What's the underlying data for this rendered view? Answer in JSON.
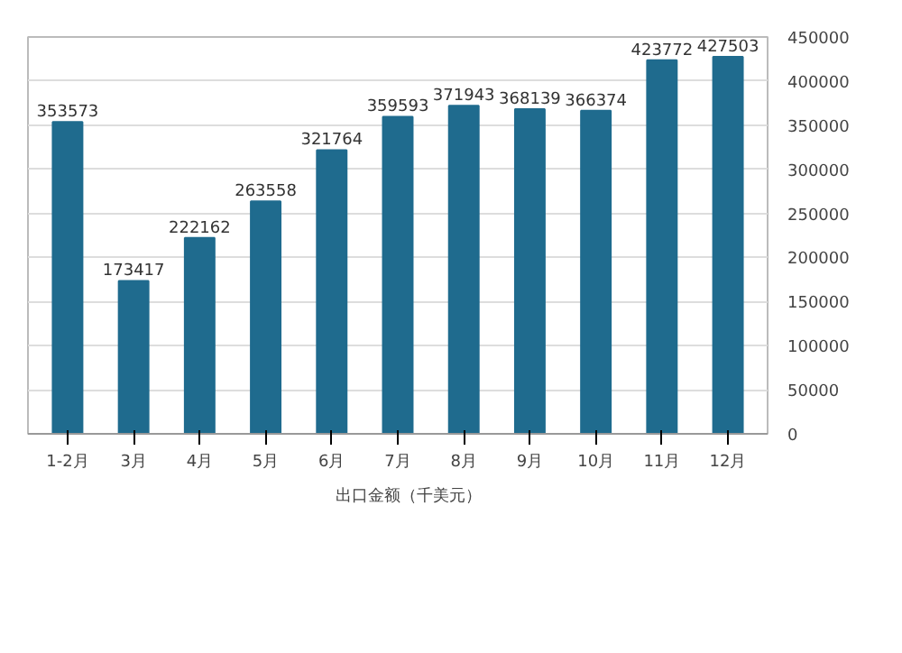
{
  "chart_data": {
    "type": "bar",
    "categories": [
      "1-2月",
      "3月",
      "4月",
      "5月",
      "6月",
      "7月",
      "8月",
      "9月",
      "10月",
      "11月",
      "12月"
    ],
    "series": [
      {
        "name": "出口金额（千美元）",
        "color": "#1f6b8e",
        "values": [
          353573,
          173417,
          222162,
          263558,
          321764,
          359593,
          371943,
          368139,
          366374,
          423772,
          427503
        ]
      }
    ],
    "ylim": [
      0,
      450000
    ],
    "yticks": [
      0,
      50000,
      100000,
      150000,
      200000,
      250000,
      300000,
      350000,
      400000,
      450000
    ],
    "grid": "y",
    "legend": "bottom",
    "data_labels": true
  }
}
